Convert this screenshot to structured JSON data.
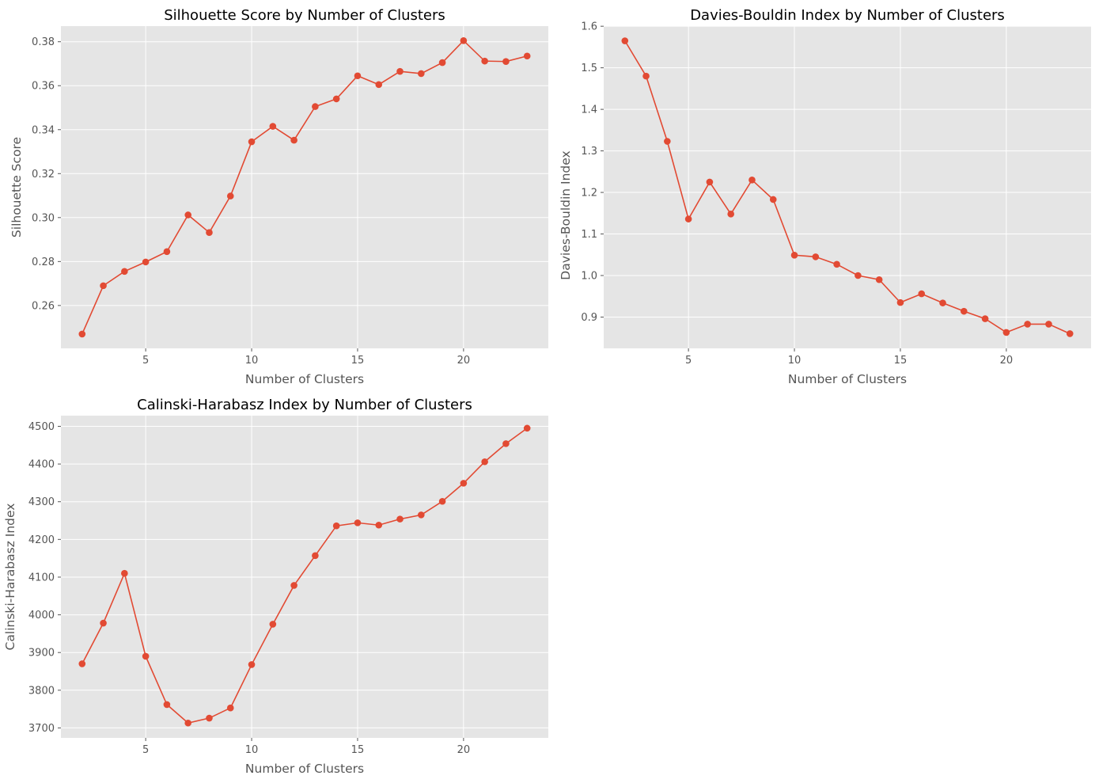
{
  "chart_data": [
    {
      "id": "silhouette",
      "type": "line",
      "title": "Silhouette Score by Number of Clusters",
      "xlabel": "Number of Clusters",
      "ylabel": "Silhouette Score",
      "x": [
        2,
        3,
        4,
        5,
        6,
        7,
        8,
        9,
        10,
        11,
        12,
        13,
        14,
        15,
        16,
        17,
        18,
        19,
        20,
        21,
        22,
        23
      ],
      "series": [
        {
          "values": [
            0.247,
            0.269,
            0.2755,
            0.2798,
            0.2845,
            0.3012,
            0.2932,
            0.3098,
            0.3345,
            0.3415,
            0.3352,
            0.3505,
            0.354,
            0.3645,
            0.3605,
            0.3665,
            0.3655,
            0.3705,
            0.3805,
            0.3712,
            0.371,
            0.3735
          ]
        }
      ],
      "xlim": [
        1.0,
        24.0
      ],
      "ylim": [
        0.2405,
        0.3871
      ],
      "xticks": [
        5,
        10,
        15,
        20
      ],
      "yticks": [
        0.26,
        0.28,
        0.3,
        0.32,
        0.34,
        0.36,
        0.38
      ],
      "ytick_labels": [
        "0.26",
        "0.28",
        "0.30",
        "0.32",
        "0.34",
        "0.36",
        "0.38"
      ],
      "grid": true,
      "color": "#e24a33"
    },
    {
      "id": "davies-bouldin",
      "type": "line",
      "title": "Davies-Bouldin Index by Number of Clusters",
      "xlabel": "Number of Clusters",
      "ylabel": "Davies-Bouldin Index",
      "x": [
        2,
        3,
        4,
        5,
        6,
        7,
        8,
        9,
        10,
        11,
        12,
        13,
        14,
        15,
        16,
        17,
        18,
        19,
        20,
        21,
        22,
        23
      ],
      "series": [
        {
          "values": [
            1.565,
            1.48,
            1.323,
            1.136,
            1.225,
            1.148,
            1.23,
            1.183,
            1.049,
            1.045,
            1.027,
            1.0,
            0.99,
            0.935,
            0.956,
            0.934,
            0.914,
            0.896,
            0.863,
            0.883,
            0.883,
            0.86
          ]
        }
      ],
      "xlim": [
        1.0,
        24.0
      ],
      "ylim": [
        0.8247,
        1.6003
      ],
      "xticks": [
        5,
        10,
        15,
        20
      ],
      "yticks": [
        0.9,
        1.0,
        1.1,
        1.2,
        1.3,
        1.4,
        1.5,
        1.6
      ],
      "ytick_labels": [
        "0.9",
        "1.0",
        "1.1",
        "1.2",
        "1.3",
        "1.4",
        "1.5",
        "1.6"
      ],
      "grid": true,
      "color": "#e24a33"
    },
    {
      "id": "calinski-harabasz",
      "type": "line",
      "title": "Calinski-Harabasz Index by Number of Clusters",
      "xlabel": "Number of Clusters",
      "ylabel": "Calinski-Harabasz Index",
      "x": [
        2,
        3,
        4,
        5,
        6,
        7,
        8,
        9,
        10,
        11,
        12,
        13,
        14,
        15,
        16,
        17,
        18,
        19,
        20,
        21,
        22,
        23
      ],
      "series": [
        {
          "values": [
            3870,
            3978,
            4110,
            3890,
            3762,
            3713,
            3726,
            3753,
            3868,
            3975,
            4078,
            4157,
            4236,
            4244,
            4238,
            4254,
            4265,
            4301,
            4349,
            4406,
            4454,
            4495
          ]
        }
      ],
      "xlim": [
        1.0,
        24.0
      ],
      "ylim": [
        3673.6,
        4528.3
      ],
      "xticks": [
        5,
        10,
        15,
        20
      ],
      "yticks": [
        3700,
        3800,
        3900,
        4000,
        4100,
        4200,
        4300,
        4400,
        4500
      ],
      "ytick_labels": [
        "3700",
        "3800",
        "3900",
        "4000",
        "4100",
        "4200",
        "4300",
        "4400",
        "4500"
      ],
      "grid": true,
      "color": "#e24a33"
    }
  ]
}
